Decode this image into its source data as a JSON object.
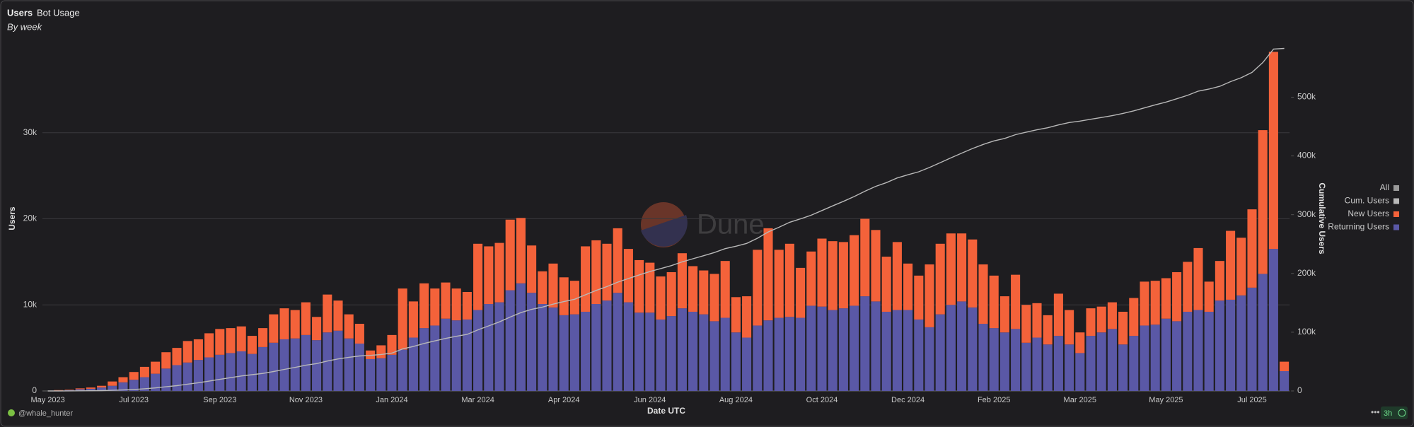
{
  "chart_data": {
    "type": "stacked_bar_line",
    "title": "Users",
    "tab": "Bot Usage",
    "subtitle": "By week",
    "xlabel": "Date UTC",
    "ylabel": "Users",
    "y2label": "Cumulative Users",
    "legend_toggle": "All",
    "legend_toggle_color": "#9a9a9a",
    "author": "@whale_hunter",
    "refresh": "3h",
    "watermark": "Dune",
    "legend_position": "right",
    "categories": [
      "May 2023",
      null,
      null,
      null,
      null,
      null,
      null,
      null,
      "Jul 2023",
      null,
      null,
      null,
      null,
      null,
      null,
      null,
      "Sep 2023",
      null,
      null,
      null,
      null,
      null,
      null,
      null,
      "Nov 2023",
      null,
      null,
      null,
      null,
      null,
      null,
      null,
      "Jan 2024",
      null,
      null,
      null,
      null,
      null,
      null,
      null,
      "Mar 2024",
      null,
      null,
      null,
      null,
      null,
      null,
      null,
      "Apr 2024",
      null,
      null,
      null,
      null,
      null,
      null,
      null,
      "Jun 2024",
      null,
      null,
      null,
      null,
      null,
      null,
      null,
      "Aug 2024",
      null,
      null,
      null,
      null,
      null,
      null,
      null,
      "Oct 2024",
      null,
      null,
      null,
      null,
      null,
      null,
      null,
      "Dec 2024",
      null,
      null,
      null,
      null,
      null,
      null,
      null,
      "Feb 2025",
      null,
      null,
      null,
      null,
      null,
      null,
      null,
      "Mar 2025",
      null,
      null,
      null,
      null,
      null,
      null,
      null,
      "May 2025",
      null,
      null,
      null,
      null,
      null,
      null,
      null,
      "Jul 2025",
      null,
      null,
      null
    ],
    "ylim": [
      0,
      40000
    ],
    "yticks": [
      0,
      {
        "value": 10000,
        "label": "10k"
      },
      {
        "value": 20000,
        "label": "20k"
      },
      {
        "value": 30000,
        "label": "30k"
      }
    ],
    "y2lim": [
      0,
      586000
    ],
    "y2ticks": [
      0,
      {
        "value": 100000,
        "label": "100k"
      },
      {
        "value": 200000,
        "label": "200k"
      },
      {
        "value": 300000,
        "label": "300k"
      },
      {
        "value": 400000,
        "label": "400k"
      },
      {
        "value": 500000,
        "label": "500k"
      }
    ],
    "grid": true,
    "series": [
      {
        "name": "Returning Users",
        "color": "#5a58a6",
        "kind": "bar",
        "values": [
          0,
          50,
          100,
          200,
          250,
          400,
          600,
          1000,
          1300,
          1600,
          2000,
          2600,
          3000,
          3300,
          3600,
          3900,
          4200,
          4400,
          4600,
          4300,
          5100,
          5600,
          6000,
          6100,
          6500,
          5900,
          6800,
          7000,
          6100,
          5500,
          3700,
          3800,
          4200,
          4800,
          6200,
          7300,
          7600,
          8400,
          8200,
          8300,
          9400,
          10100,
          10300,
          11700,
          12500,
          11400,
          10100,
          9700,
          8800,
          8900,
          9200,
          10100,
          10500,
          11400,
          10300,
          9100,
          9100,
          8300,
          8700,
          9600,
          9200,
          8900,
          8100,
          8500,
          6800,
          6200,
          7600,
          8200,
          8500,
          8600,
          8500,
          9900,
          9800,
          9400,
          9600,
          9900,
          11000,
          10400,
          9200,
          9400,
          9400,
          8300,
          7400,
          8900,
          10000,
          10400,
          9700,
          7800,
          7300,
          6800,
          7200,
          5600,
          6200,
          5400,
          6400,
          5400,
          4400,
          6400,
          6800,
          7200,
          5400,
          6400,
          7600,
          7700,
          8400,
          8100,
          9200,
          9400,
          9200,
          10500,
          10600,
          11100,
          12000,
          13600,
          16500,
          2300
        ]
      },
      {
        "name": "New Users",
        "color": "#f4623a",
        "kind": "bar",
        "values": [
          0,
          50,
          50,
          100,
          150,
          200,
          500,
          600,
          900,
          1200,
          1400,
          1900,
          2000,
          2500,
          2400,
          2800,
          3000,
          2900,
          2900,
          2100,
          2200,
          3300,
          3600,
          3300,
          3800,
          2700,
          4400,
          3500,
          2800,
          2300,
          1000,
          1500,
          2300,
          7100,
          4200,
          5200,
          4300,
          4200,
          3700,
          3200,
          7700,
          6700,
          6900,
          8200,
          7600,
          5500,
          3800,
          5100,
          4400,
          3900,
          7600,
          7400,
          6600,
          7500,
          6200,
          6100,
          5800,
          5000,
          5100,
          6400,
          5300,
          5100,
          5500,
          6600,
          4100,
          4800,
          8800,
          10700,
          7900,
          8500,
          5800,
          6300,
          7900,
          8000,
          7700,
          8200,
          9000,
          8300,
          6400,
          7900,
          5400,
          5100,
          7300,
          8200,
          8300,
          7900,
          7900,
          6900,
          6100,
          4200,
          6300,
          4400,
          4000,
          3400,
          4900,
          4000,
          2400,
          3200,
          3000,
          3100,
          3800,
          4400,
          5100,
          5100,
          4700,
          5700,
          5800,
          7200,
          3500,
          4600,
          8000,
          6700,
          9100,
          16700,
          22900,
          1100
        ]
      },
      {
        "name": "Cum. Users",
        "color": "#b8b8b8",
        "kind": "line",
        "axis": "y2",
        "values": [
          0,
          50,
          100,
          200,
          350,
          550,
          1050,
          1650,
          2550,
          3750,
          5150,
          7050,
          9050,
          11550,
          13950,
          16750,
          19750,
          22650,
          25550,
          27650,
          29850,
          33150,
          36750,
          40050,
          43850,
          46550,
          50950,
          54450,
          57250,
          59550,
          60550,
          62050,
          64350,
          71450,
          75650,
          80850,
          85150,
          89350,
          93050,
          96250,
          103950,
          110650,
          117550,
          125750,
          133350,
          138850,
          142650,
          147750,
          152150,
          156050,
          163650,
          171050,
          177650,
          185150,
          191350,
          197450,
          203250,
          208250,
          213350,
          219750,
          225050,
          230150,
          235650,
          242250,
          246350,
          251150,
          259950,
          270650,
          278550,
          287050,
          292850,
          299150,
          307050,
          315050,
          322750,
          330950,
          339950,
          348250,
          354650,
          362550,
          367950,
          373050,
          380350,
          388550,
          396850,
          404750,
          412650,
          419550,
          425650,
          429850,
          436150,
          440550,
          444550,
          447950,
          452850,
          456850,
          459250,
          462450,
          465450,
          468550,
          472350,
          476750,
          481850,
          486950,
          491650,
          497350,
          503150,
          510350,
          513850,
          518450,
          526450,
          533150,
          542250,
          558950,
          581850,
          582950
        ]
      }
    ]
  }
}
